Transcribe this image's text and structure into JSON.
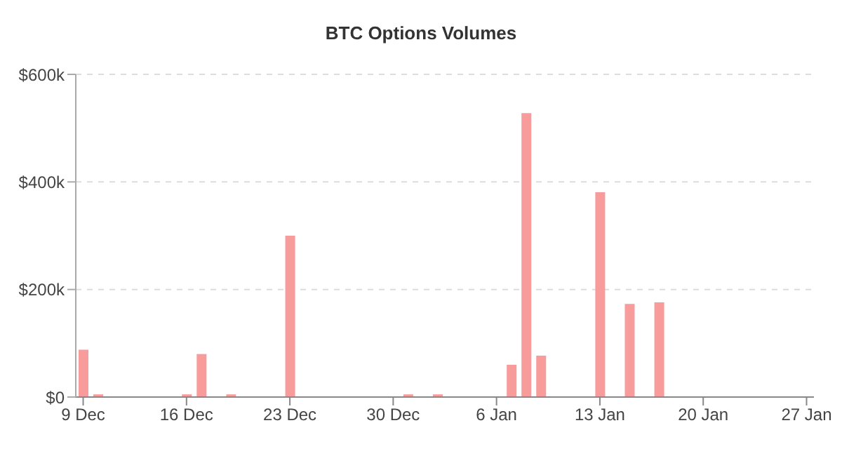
{
  "chart_data": {
    "type": "bar",
    "title": "BTC Options Volumes",
    "categories": [
      "9 Dec",
      null,
      null,
      null,
      null,
      null,
      null,
      "16 Dec",
      null,
      null,
      null,
      null,
      null,
      null,
      "23 Dec",
      null,
      null,
      null,
      null,
      null,
      null,
      "30 Dec",
      null,
      null,
      null,
      null,
      null,
      null,
      "6 Jan",
      null,
      null,
      null,
      null,
      null,
      null,
      "13 Jan",
      null,
      null,
      null,
      null,
      null,
      null,
      "20 Jan",
      null,
      null,
      null,
      null,
      null,
      null,
      "27 Jan"
    ],
    "series": [
      {
        "color": "#f79b9b",
        "values": [
          88000,
          5000,
          null,
          null,
          null,
          null,
          null,
          5000,
          80000,
          null,
          5000,
          null,
          null,
          null,
          300000,
          null,
          null,
          null,
          null,
          null,
          null,
          null,
          5000,
          null,
          5000,
          null,
          null,
          null,
          null,
          60000,
          528000,
          77000,
          null,
          null,
          null,
          381000,
          null,
          173000,
          null,
          176000,
          null,
          null,
          null,
          null,
          null,
          null,
          null,
          null,
          null,
          null
        ]
      }
    ],
    "ylim": [
      0,
      600000
    ],
    "yticks": [
      {
        "value": 0,
        "label": "$0"
      },
      {
        "value": 200000,
        "label": "$200k"
      },
      {
        "value": 400000,
        "label": "$400k"
      },
      {
        "value": 600000,
        "label": "$600k"
      }
    ],
    "grid": "y",
    "legend": false
  }
}
